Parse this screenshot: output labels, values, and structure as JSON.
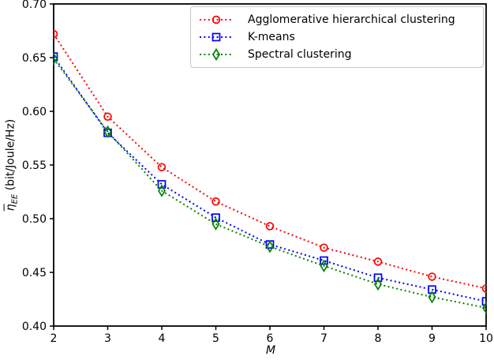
{
  "chart_data": {
    "type": "line",
    "title": "",
    "xlabel": "M",
    "ylabel_eta": "η",
    "ylabel_sub": "EE",
    "ylabel_rest": " (bit/Joule/Hz)",
    "xlim": [
      2,
      10
    ],
    "ylim": [
      0.4,
      0.7
    ],
    "xticks": [
      2,
      3,
      4,
      5,
      6,
      7,
      8,
      9,
      10
    ],
    "yticks": [
      0.4,
      0.45,
      0.5,
      0.55,
      0.6,
      0.65,
      0.7
    ],
    "grid": false,
    "legend_position": "upper right",
    "x": [
      2,
      3,
      4,
      5,
      6,
      7,
      8,
      9,
      10
    ],
    "series": [
      {
        "name": "Agglomerative hierarchical clustering",
        "color": "#ff0000",
        "marker": "circle",
        "linestyle": "dotted",
        "values": [
          0.672,
          0.595,
          0.548,
          0.516,
          0.493,
          0.473,
          0.46,
          0.446,
          0.435
        ]
      },
      {
        "name": "K-means",
        "color": "#0000ff",
        "marker": "square",
        "linestyle": "dotted",
        "values": [
          0.651,
          0.58,
          0.532,
          0.501,
          0.476,
          0.461,
          0.445,
          0.434,
          0.423
        ]
      },
      {
        "name": "Spectral clustering",
        "color": "#008000",
        "marker": "diamond",
        "linestyle": "dotted",
        "values": [
          0.649,
          0.581,
          0.526,
          0.495,
          0.474,
          0.456,
          0.439,
          0.427,
          0.417
        ]
      }
    ]
  }
}
